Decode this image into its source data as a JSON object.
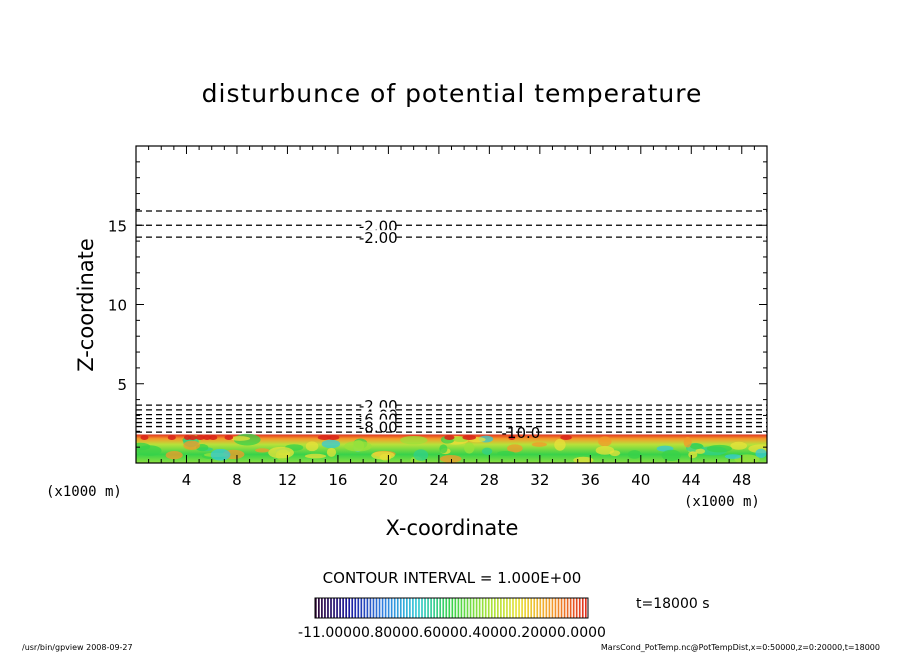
{
  "chart_data": {
    "type": "contour",
    "title": "disturbunce of potential temperature",
    "xlabel": "X-coordinate",
    "ylabel": "Z-coordinate",
    "x_unit_note": "(x1000 m)",
    "x_unit_note_right": "(x1000 m)",
    "xlim": [
      0,
      50
    ],
    "ylim": [
      0,
      20
    ],
    "x_ticks": [
      4,
      8,
      12,
      16,
      20,
      24,
      28,
      32,
      36,
      40,
      44,
      48
    ],
    "y_ticks": [
      5,
      10,
      15
    ],
    "contour_interval_label": "CONTOUR INTERVAL = 1.000E+00",
    "time_label": "t=18000 s",
    "colorbar_tick_text": "-11.00000.80000.60000.40000.20000.0000",
    "colormap": [
      "#2a0033",
      "#1a1aa0",
      "#2f7fe0",
      "#35c9d6",
      "#37d24a",
      "#9be23a",
      "#e8e23a",
      "#f39a2a",
      "#e0301e"
    ],
    "contours": [
      {
        "z": 15.9,
        "style": "dashed",
        "label": ""
      },
      {
        "z": 15.0,
        "style": "dashed",
        "label": "-2.00"
      },
      {
        "z": 14.25,
        "style": "dashed",
        "label": "-2.00"
      },
      {
        "z": 3.65,
        "style": "dashed",
        "label": "-2.00"
      },
      {
        "z": 3.35,
        "style": "dashed",
        "label": ""
      },
      {
        "z": 3.05,
        "style": "dashed",
        "label": "-4.00"
      },
      {
        "z": 2.8,
        "style": "dashed",
        "label": "-6.00"
      },
      {
        "z": 2.55,
        "style": "dashed",
        "label": ""
      },
      {
        "z": 2.3,
        "style": "dashed",
        "label": "-8.00"
      },
      {
        "z": 1.95,
        "style": "dashed",
        "label": "-10.0"
      }
    ],
    "shaded_layer_top": 1.8,
    "footer_left": "/usr/bin/gpview   2008-09-27",
    "footer_right": "MarsCond_PotTemp.nc@PotTempDist,x=0:50000,z=0:20000,t=18000"
  }
}
